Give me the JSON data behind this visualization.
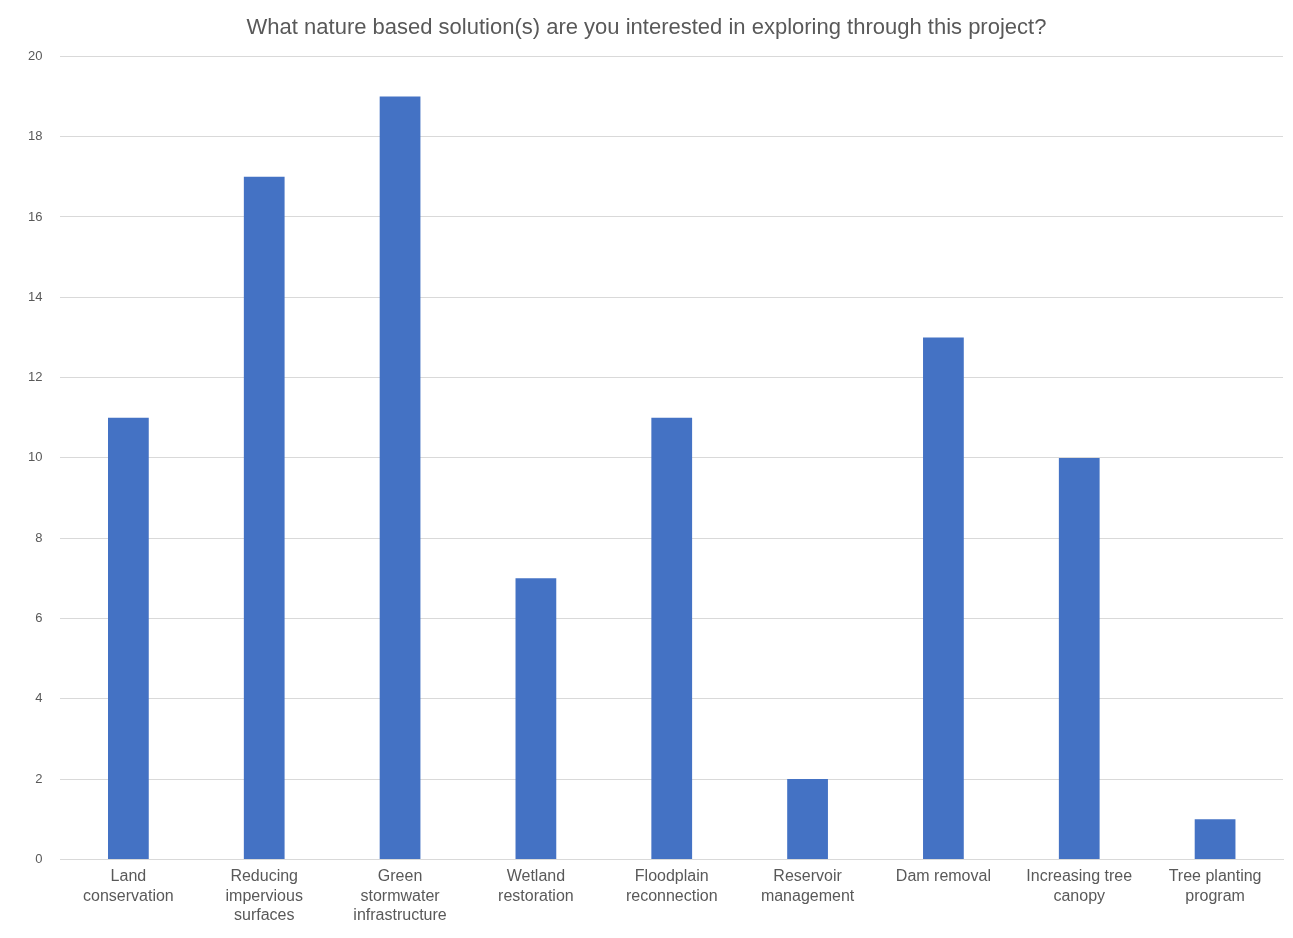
{
  "chart_data": {
    "type": "bar",
    "title": "What nature based solution(s) are you interested in exploring through this project?",
    "categories": [
      "Land conservation",
      "Reducing impervious surfaces",
      "Green stormwater infrastructure",
      "Wetland restoration",
      "Floodplain reconnection",
      "Reservoir management",
      "Dam removal",
      "Increasing tree canopy",
      "Tree planting program"
    ],
    "values": [
      11,
      17,
      19,
      7,
      11,
      2,
      13,
      10,
      1
    ],
    "color": "#4472c4",
    "ylim": [
      0,
      20
    ],
    "yticks": [
      0,
      2,
      4,
      6,
      8,
      10,
      12,
      14,
      16,
      18,
      20
    ],
    "grid": "y"
  }
}
